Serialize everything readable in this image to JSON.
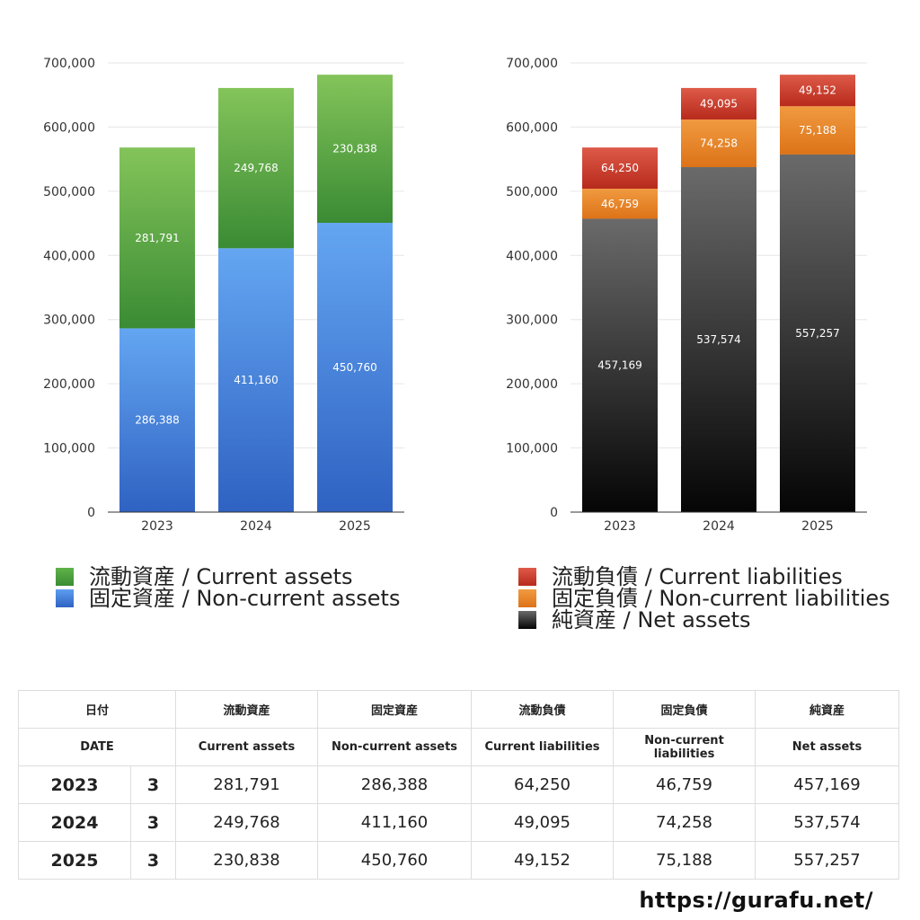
{
  "chart_data": [
    {
      "type": "bar",
      "stacked": true,
      "categories": [
        "2023",
        "2024",
        "2025"
      ],
      "ylim": [
        0,
        700000
      ],
      "yticks": [
        "0",
        "100,000",
        "200,000",
        "300,000",
        "400,000",
        "500,000",
        "600,000",
        "700,000"
      ],
      "grid": true,
      "series": [
        {
          "name": "固定資産 / Non-current assets",
          "values": [
            286388,
            411160,
            450760
          ],
          "labels": [
            "286,388",
            "411,160",
            "450,760"
          ],
          "color_top": "#64a6f2",
          "color_bottom": "#2f62c2",
          "label_color": "#ffffff"
        },
        {
          "name": "流動資産 / Current assets",
          "values": [
            281791,
            249768,
            230838
          ],
          "labels": [
            "281,791",
            "249,768",
            "230,838"
          ],
          "color_top": "#84c45a",
          "color_bottom": "#3a8b34",
          "label_color": "#ffffff"
        }
      ]
    },
    {
      "type": "bar",
      "stacked": true,
      "categories": [
        "2023",
        "2024",
        "2025"
      ],
      "ylim": [
        0,
        700000
      ],
      "yticks": [
        "0",
        "100,000",
        "200,000",
        "300,000",
        "400,000",
        "500,000",
        "600,000",
        "700,000"
      ],
      "grid": true,
      "series": [
        {
          "name": "純資産 / Net assets",
          "values": [
            457169,
            537574,
            557257
          ],
          "labels": [
            "457,169",
            "537,574",
            "557,257"
          ],
          "color_top": "#6a6a6a",
          "color_bottom": "#050505",
          "label_color": "#ffffff"
        },
        {
          "name": "固定負債 / Non-current liabilities",
          "values": [
            46759,
            74258,
            75188
          ],
          "labels": [
            "46,759",
            "74,258",
            "75,188"
          ],
          "color_top": "#f09a40",
          "color_bottom": "#dd7318",
          "label_color": "#ffffff"
        },
        {
          "name": "流動負債 / Current liabilities",
          "values": [
            64250,
            49095,
            49152
          ],
          "labels": [
            "64,250",
            "49,095",
            "49,152"
          ],
          "color_top": "#de5a48",
          "color_bottom": "#b72a1c",
          "label_color": "#ffffff"
        }
      ]
    }
  ],
  "legend_left": [
    {
      "label": "流動資産 / Current assets",
      "color": "#4da43e"
    },
    {
      "label": "固定資産 / Non-current assets",
      "color": "#3d7fdf"
    }
  ],
  "legend_right": [
    {
      "label": "流動負債 / Current liabilities",
      "color": "#cf3f2f"
    },
    {
      "label": "固定負債 / Non-current liabilities",
      "color": "#e8842a"
    },
    {
      "label": "純資産 / Net assets",
      "color": "#222222"
    }
  ],
  "table": {
    "header_jp": {
      "date": "日付",
      "current_assets": "流動資産",
      "noncurrent_assets": "固定資産",
      "current_liabilities": "流動負債",
      "noncurrent_liabilities": "固定負債",
      "net_assets": "純資産"
    },
    "header_en": {
      "date": "DATE",
      "current_assets": "Current assets",
      "noncurrent_assets": "Non-current assets",
      "current_liabilities": "Current liabilities",
      "noncurrent_liabilities": "Non-current liabilities",
      "net_assets": "Net assets"
    },
    "rows": [
      {
        "year": "2023",
        "month": "3",
        "current_assets": "281,791",
        "noncurrent_assets": "286,388",
        "current_liabilities": "64,250",
        "noncurrent_liabilities": "46,759",
        "net_assets": "457,169"
      },
      {
        "year": "2024",
        "month": "3",
        "current_assets": "249,768",
        "noncurrent_assets": "411,160",
        "current_liabilities": "49,095",
        "noncurrent_liabilities": "74,258",
        "net_assets": "537,574"
      },
      {
        "year": "2025",
        "month": "3",
        "current_assets": "230,838",
        "noncurrent_assets": "450,760",
        "current_liabilities": "49,152",
        "noncurrent_liabilities": "75,188",
        "net_assets": "557,257"
      }
    ]
  },
  "site": "https://gurafu.net/"
}
